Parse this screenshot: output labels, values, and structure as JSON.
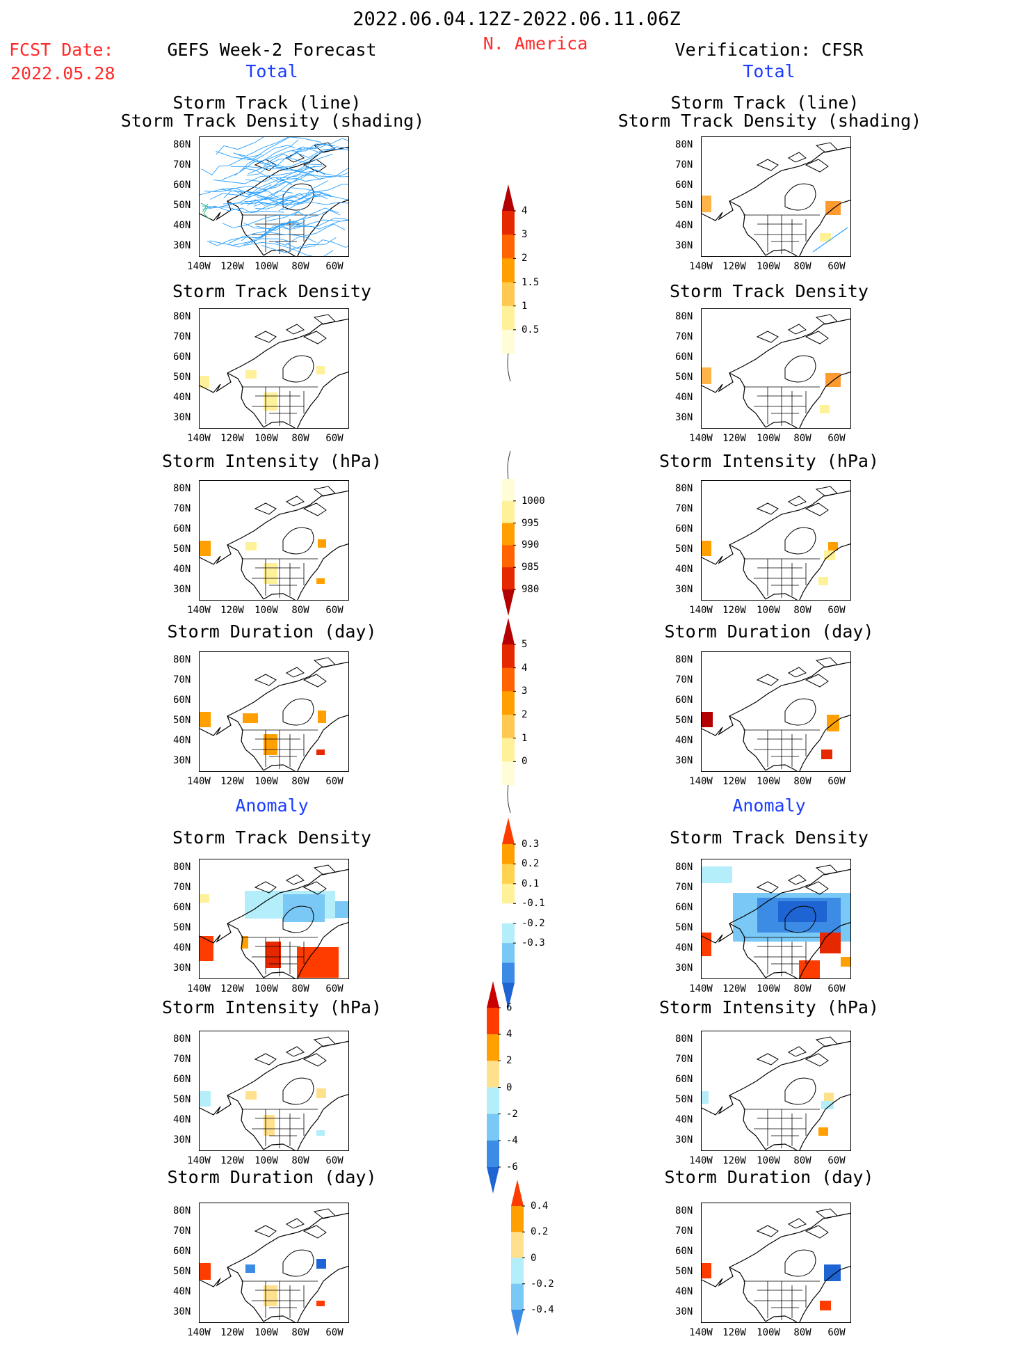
{
  "header": {
    "date_range": "2022.06.04.12Z-2022.06.11.06Z",
    "region": "N. America",
    "fcst_label": "FCST Date:",
    "fcst_date": "2022.05.28",
    "left_title": "GEFS Week-2 Forecast",
    "right_title": "Verification: CFSR",
    "left_total": "Total",
    "right_total": "Total",
    "left_anomaly": "Anomaly",
    "right_anomaly": "Anomaly"
  },
  "panel_titles": {
    "track_line": "Storm Track (line)",
    "track_shading": "Storm Track Density (shading)",
    "density": "Storm Track Density",
    "intensity": "Storm Intensity (hPa)",
    "duration": "Storm Duration (day)"
  },
  "axes": {
    "lat_labels": [
      "80N",
      "70N",
      "60N",
      "50N",
      "40N",
      "30N"
    ],
    "lon_labels": [
      "140W",
      "120W",
      "100W",
      "80W",
      "60W"
    ]
  },
  "colorbars": {
    "density": {
      "labels": [
        "4",
        "3",
        "2",
        "1.5",
        "1",
        "0.5"
      ],
      "colors": [
        "#b40000",
        "#e62800",
        "#ff6400",
        "#ffa000",
        "#ffc850",
        "#fff09a",
        "#fffcd8"
      ]
    },
    "intensity": {
      "labels": [
        "1000",
        "995",
        "990",
        "985",
        "980"
      ],
      "colors": [
        "#fffcd8",
        "#fff09a",
        "#ffa000",
        "#ff6400",
        "#e62800",
        "#b40000"
      ]
    },
    "duration": {
      "labels": [
        "5",
        "4",
        "3",
        "2",
        "1",
        "0"
      ],
      "colors": [
        "#b40000",
        "#e62800",
        "#ff6400",
        "#ffa000",
        "#ffc850",
        "#fff09a",
        "#fffcd8"
      ]
    },
    "anom_density": {
      "labels": [
        "0.3",
        "0.2",
        "0.1",
        "-0.1",
        "-0.2",
        "-0.3"
      ],
      "colors": [
        "#ff3c00",
        "#ffa000",
        "#ffd250",
        "#fff09a",
        "#ffffff",
        "#b4eefa",
        "#7ac8f5",
        "#3c8ce6",
        "#1e64d2"
      ]
    },
    "anom_intensity": {
      "labels": [
        "6",
        "4",
        "2",
        "0",
        "-2",
        "-4",
        "-6"
      ],
      "colors": [
        "#c80000",
        "#ff3c00",
        "#ffa000",
        "#ffe08c",
        "#b4eefa",
        "#7ac8f5",
        "#3c8ce6",
        "#1e64d2"
      ]
    },
    "anom_duration": {
      "labels": [
        "0.4",
        "0.2",
        "0",
        "-0.2",
        "-0.4"
      ],
      "colors": [
        "#ff3c00",
        "#ffa000",
        "#ffe08c",
        "#b4eefa",
        "#7ac8f5",
        "#3c8ce6"
      ]
    }
  },
  "colors": {
    "track_forecast": "#2aa0ff",
    "track_verification": "#2aa0ff",
    "coast": "#000000"
  }
}
